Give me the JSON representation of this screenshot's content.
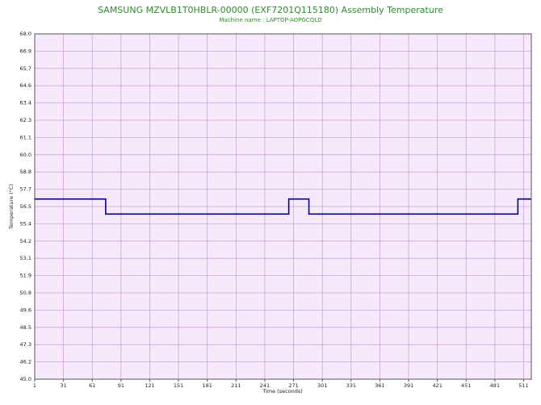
{
  "chart_data": {
    "type": "line",
    "title": "SAMSUNG MZVLB1T0HBLR-00000 (EXF7201Q115180) Assembly Temperature",
    "subtitle": "Machine name : LAPTOP-AOPGCQLD",
    "x_label": "Time (seconds)",
    "y_label": "Temperature (°C)",
    "x": [
      1,
      75,
      75,
      266,
      266,
      287,
      287,
      505,
      505,
      519
    ],
    "series": [
      {
        "color": "#00008b",
        "values": [
          57,
          57,
          56,
          56,
          57,
          57,
          56,
          56,
          57,
          57
        ]
      }
    ],
    "xlim": [
      1,
      519
    ],
    "xticks": [
      1,
      31,
      61,
      91,
      121,
      151,
      181,
      211,
      241,
      271,
      301,
      331,
      361,
      391,
      421,
      451,
      481,
      511
    ],
    "ylim": [
      45,
      68
    ],
    "yticks": [
      {
        "value": 45,
        "label": "45.0"
      },
      {
        "value": 46.15,
        "label": "46.2"
      },
      {
        "value": 47.3,
        "label": "47.3"
      },
      {
        "value": 48.45,
        "label": "48.5"
      },
      {
        "value": 49.6,
        "label": "49.6"
      },
      {
        "value": 50.75,
        "label": "50.8"
      },
      {
        "value": 51.9,
        "label": "51.9"
      },
      {
        "value": 53.05,
        "label": "53.1"
      },
      {
        "value": 54.2,
        "label": "54.2"
      },
      {
        "value": 55.35,
        "label": "55.4"
      },
      {
        "value": 56.5,
        "label": "56.5"
      },
      {
        "value": 57.65,
        "label": "57.7"
      },
      {
        "value": 58.8,
        "label": "58.8"
      },
      {
        "value": 59.95,
        "label": "60.0"
      },
      {
        "value": 61.1,
        "label": "61.1"
      },
      {
        "value": 62.25,
        "label": "62.3"
      },
      {
        "value": 63.4,
        "label": "63.4"
      },
      {
        "value": 64.55,
        "label": "64.6"
      },
      {
        "value": 65.7,
        "label": "65.7"
      },
      {
        "value": 66.85,
        "label": "66.9"
      },
      {
        "value": 68,
        "label": "68.0"
      }
    ],
    "grid": true
  }
}
